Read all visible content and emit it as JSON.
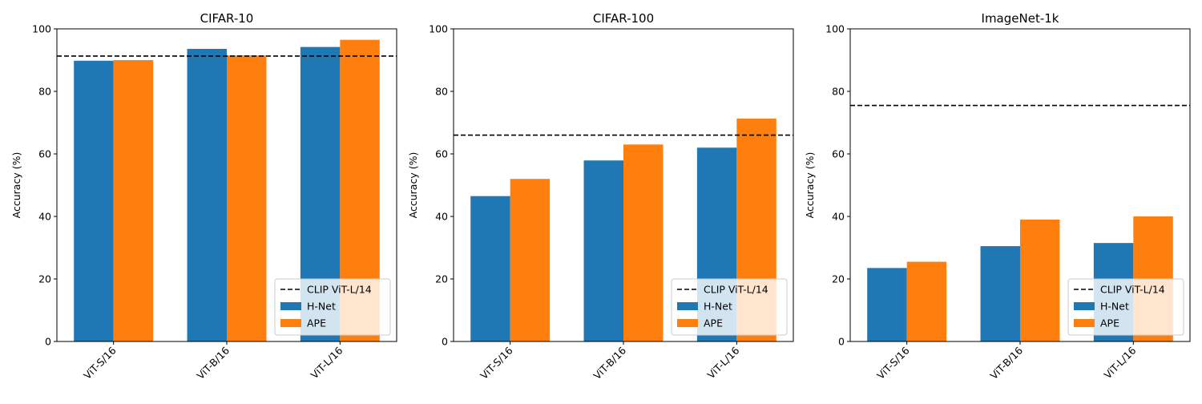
{
  "chart_data": [
    {
      "type": "bar",
      "title": "CIFAR-10",
      "xlabel": "",
      "ylabel": "Accuracy (%)",
      "ylim": [
        0,
        100
      ],
      "yticks": [
        0,
        20,
        40,
        60,
        80,
        100
      ],
      "categories": [
        "ViT-S/16",
        "ViT-B/16",
        "ViT-L/16"
      ],
      "series": [
        {
          "name": "H-Net",
          "values": [
            89.8,
            93.6,
            94.2
          ],
          "color": "#1f77b4"
        },
        {
          "name": "APE",
          "values": [
            90.0,
            91.5,
            96.5
          ],
          "color": "#ff7f0e"
        }
      ],
      "reference_line": {
        "name": "CLIP ViT-L/14",
        "value": 91.3,
        "style": "dashed",
        "color": "#000000"
      },
      "legend": "lower-right",
      "grid": false
    },
    {
      "type": "bar",
      "title": "CIFAR-100",
      "xlabel": "",
      "ylabel": "Accuracy (%)",
      "ylim": [
        0,
        100
      ],
      "yticks": [
        0,
        20,
        40,
        60,
        80,
        100
      ],
      "categories": [
        "ViT-S/16",
        "ViT-B/16",
        "ViT-L/16"
      ],
      "series": [
        {
          "name": "H-Net",
          "values": [
            46.5,
            57.9,
            62.0
          ],
          "color": "#1f77b4"
        },
        {
          "name": "APE",
          "values": [
            52.0,
            63.0,
            71.3
          ],
          "color": "#ff7f0e"
        }
      ],
      "reference_line": {
        "name": "CLIP ViT-L/14",
        "value": 66.0,
        "style": "dashed",
        "color": "#000000"
      },
      "legend": "lower-right",
      "grid": false
    },
    {
      "type": "bar",
      "title": "ImageNet-1k",
      "xlabel": "",
      "ylabel": "Accuracy (%)",
      "ylim": [
        0,
        100
      ],
      "yticks": [
        0,
        20,
        40,
        60,
        80,
        100
      ],
      "categories": [
        "ViT-S/16",
        "ViT-B/16",
        "ViT-L/16"
      ],
      "series": [
        {
          "name": "H-Net",
          "values": [
            23.5,
            30.5,
            31.5
          ],
          "color": "#1f77b4"
        },
        {
          "name": "APE",
          "values": [
            25.5,
            39.0,
            40.0
          ],
          "color": "#ff7f0e"
        }
      ],
      "reference_line": {
        "name": "CLIP ViT-L/14",
        "value": 75.5,
        "style": "dashed",
        "color": "#000000"
      },
      "legend": "lower-right",
      "grid": false
    }
  ]
}
